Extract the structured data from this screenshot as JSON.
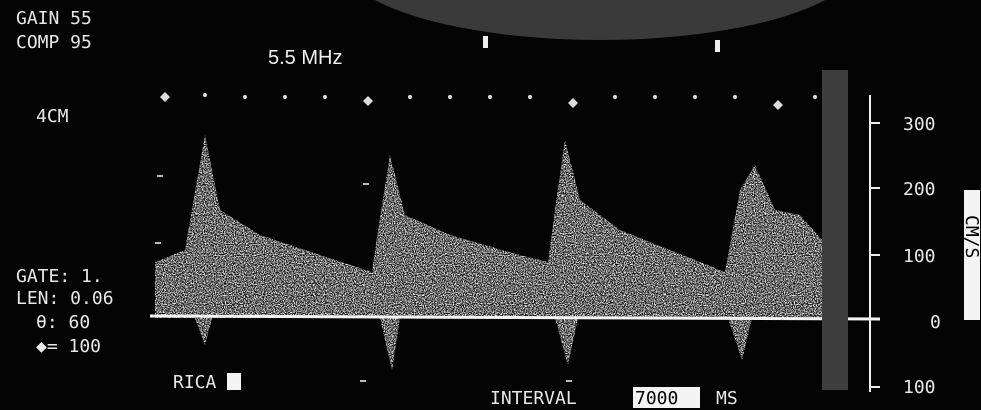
{
  "settings": {
    "gain": "GAIN 55",
    "comp": "COMP 95",
    "frequency": "5.5 MHz",
    "depth": "4CM",
    "gate": "GATE: 1.",
    "len": "LEN: 0.06",
    "angle": "θ: 60",
    "marker": "◆= 100"
  },
  "vessel": "RICA",
  "interval": {
    "label": "INTERVAL",
    "value": "7000",
    "unit": "MS"
  },
  "scale": {
    "labels": [
      "300",
      "200",
      "100",
      "0",
      "100"
    ],
    "unit": "CM/S"
  }
}
